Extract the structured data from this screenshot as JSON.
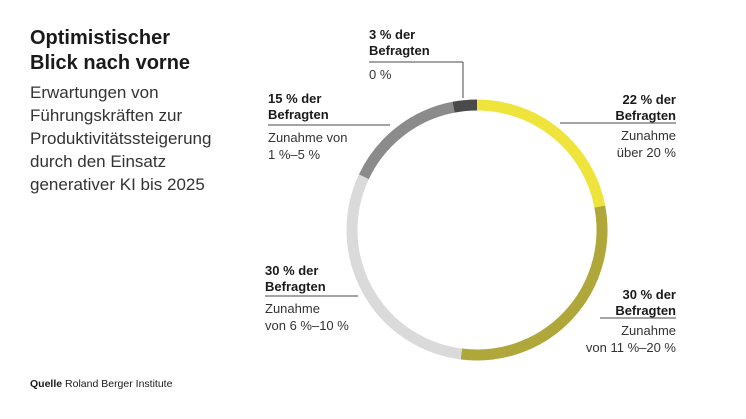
{
  "title_line1": "Optimistischer",
  "title_line2": "Blick nach vorne",
  "subtitle_lines": [
    "Erwartungen von",
    "Führungskräften zur",
    "Produktivitätssteigerung",
    "durch den Einsatz",
    "generativer KI bis 2025"
  ],
  "source_label": "Quelle",
  "source_text": "Roland Berger Institute",
  "chart_data": {
    "type": "pie",
    "variant": "donut-ring",
    "unit": "%",
    "slices": [
      {
        "value": 22,
        "head": [
          "22 % der",
          "Befragten"
        ],
        "body": [
          "Zunahme",
          "über 20 %"
        ],
        "color": "#efe43c"
      },
      {
        "value": 30,
        "head": [
          "30 % der",
          "Befragten"
        ],
        "body": [
          "Zunahme",
          "von 11 %–20 %"
        ],
        "color": "#b0a73a"
      },
      {
        "value": 30,
        "head": [
          "30 % der",
          "Befragten"
        ],
        "body": [
          "Zunahme",
          "von 6 %–10 %"
        ],
        "color": "#dadada"
      },
      {
        "value": 15,
        "head": [
          "15 % der",
          "Befragten"
        ],
        "body": [
          "Zunahme von",
          "1 %–5 %"
        ],
        "color": "#8b8b8b"
      },
      {
        "value": 3,
        "head": [
          "3 % der",
          "Befragten"
        ],
        "body": [
          "0 %"
        ],
        "color": "#4a4a4a"
      }
    ]
  }
}
